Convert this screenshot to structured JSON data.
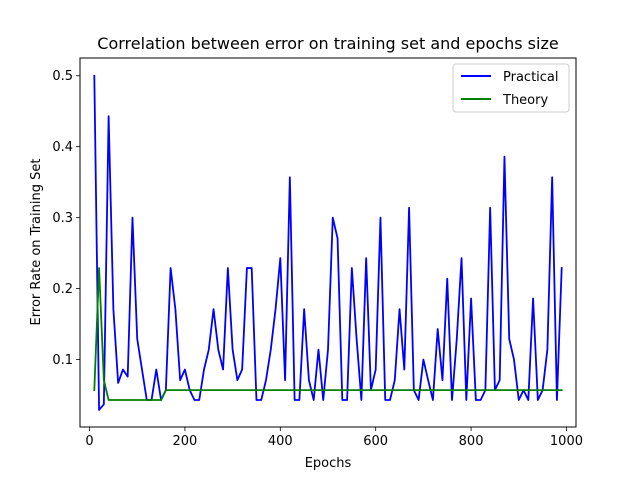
{
  "chart_data": {
    "type": "line",
    "title": "Correlation between error on training set and epochs size",
    "xlabel": "Epochs",
    "ylabel": "Error Rate on Training Set",
    "xlim": [
      -20,
      1020
    ],
    "ylim": [
      0.005,
      0.525
    ],
    "xticks": [
      0,
      200,
      400,
      600,
      800,
      1000
    ],
    "yticks": [
      0.1,
      0.2,
      0.3,
      0.4,
      0.5
    ],
    "xtick_labels": [
      "0",
      "200",
      "400",
      "600",
      "800",
      "1000"
    ],
    "ytick_labels": [
      "0.1",
      "0.2",
      "0.3",
      "0.4",
      "0.5"
    ],
    "grid": false,
    "legend_position": "top-right",
    "series": [
      {
        "name": "Practical",
        "color": "#0000ff",
        "x": [
          10,
          20,
          30,
          40,
          50,
          60,
          70,
          80,
          90,
          100,
          110,
          120,
          130,
          140,
          150,
          160,
          170,
          180,
          190,
          200,
          210,
          220,
          230,
          240,
          250,
          260,
          270,
          280,
          290,
          300,
          310,
          320,
          330,
          340,
          350,
          360,
          370,
          380,
          390,
          400,
          410,
          420,
          430,
          440,
          450,
          460,
          470,
          480,
          490,
          500,
          510,
          520,
          530,
          540,
          550,
          560,
          570,
          580,
          590,
          600,
          610,
          620,
          630,
          640,
          650,
          660,
          670,
          680,
          690,
          700,
          710,
          720,
          730,
          740,
          750,
          760,
          770,
          780,
          790,
          800,
          810,
          820,
          830,
          840,
          850,
          860,
          870,
          880,
          890,
          900,
          910,
          920,
          930,
          940,
          950,
          960,
          970,
          980,
          990
        ],
        "y": [
          0.5,
          0.029,
          0.037,
          0.443,
          0.171,
          0.067,
          0.086,
          0.076,
          0.3,
          0.129,
          0.086,
          0.043,
          0.043,
          0.086,
          0.043,
          0.057,
          0.229,
          0.171,
          0.071,
          0.086,
          0.057,
          0.043,
          0.043,
          0.086,
          0.114,
          0.171,
          0.114,
          0.086,
          0.229,
          0.114,
          0.071,
          0.086,
          0.229,
          0.229,
          0.043,
          0.043,
          0.071,
          0.114,
          0.171,
          0.243,
          0.071,
          0.357,
          0.043,
          0.043,
          0.171,
          0.071,
          0.043,
          0.114,
          0.043,
          0.114,
          0.3,
          0.271,
          0.043,
          0.043,
          0.229,
          0.129,
          0.043,
          0.243,
          0.057,
          0.086,
          0.3,
          0.043,
          0.043,
          0.071,
          0.171,
          0.086,
          0.314,
          0.057,
          0.043,
          0.1,
          0.071,
          0.043,
          0.143,
          0.071,
          0.214,
          0.043,
          0.129,
          0.243,
          0.043,
          0.186,
          0.043,
          0.043,
          0.057,
          0.314,
          0.057,
          0.071,
          0.386,
          0.129,
          0.1,
          0.043,
          0.057,
          0.043,
          0.186,
          0.043,
          0.057,
          0.114,
          0.357,
          0.043,
          0.229
        ]
      },
      {
        "name": "Theory",
        "color": "#008000",
        "x": [
          10,
          20,
          30,
          40,
          50,
          60,
          70,
          80,
          90,
          100,
          110,
          120,
          130,
          140,
          150,
          160,
          170,
          180,
          190,
          200,
          210,
          220,
          230,
          240,
          250,
          260,
          270,
          280,
          290,
          300,
          310,
          320,
          330,
          340,
          350,
          360,
          370,
          380,
          390,
          400,
          410,
          420,
          430,
          440,
          450,
          460,
          470,
          480,
          490,
          500,
          510,
          520,
          530,
          540,
          550,
          560,
          570,
          580,
          590,
          600,
          610,
          620,
          630,
          640,
          650,
          660,
          670,
          680,
          690,
          700,
          710,
          720,
          730,
          740,
          750,
          760,
          770,
          780,
          790,
          800,
          810,
          820,
          830,
          840,
          850,
          860,
          870,
          880,
          890,
          900,
          910,
          920,
          930,
          940,
          950,
          960,
          970,
          980,
          990
        ],
        "y": [
          0.057,
          0.229,
          0.071,
          0.043,
          0.043,
          0.043,
          0.043,
          0.043,
          0.043,
          0.043,
          0.043,
          0.043,
          0.043,
          0.043,
          0.043,
          0.057,
          0.057,
          0.057,
          0.057,
          0.057,
          0.057,
          0.057,
          0.057,
          0.057,
          0.057,
          0.057,
          0.057,
          0.057,
          0.057,
          0.057,
          0.057,
          0.057,
          0.057,
          0.057,
          0.057,
          0.057,
          0.057,
          0.057,
          0.057,
          0.057,
          0.057,
          0.057,
          0.057,
          0.057,
          0.057,
          0.057,
          0.057,
          0.057,
          0.057,
          0.057,
          0.057,
          0.057,
          0.057,
          0.057,
          0.057,
          0.057,
          0.057,
          0.057,
          0.057,
          0.057,
          0.057,
          0.057,
          0.057,
          0.057,
          0.057,
          0.057,
          0.057,
          0.057,
          0.057,
          0.057,
          0.057,
          0.057,
          0.057,
          0.057,
          0.057,
          0.057,
          0.057,
          0.057,
          0.057,
          0.057,
          0.057,
          0.057,
          0.057,
          0.057,
          0.057,
          0.057,
          0.057,
          0.057,
          0.057,
          0.057,
          0.057,
          0.057,
          0.057,
          0.057,
          0.057,
          0.057,
          0.057,
          0.057,
          0.057
        ]
      }
    ]
  }
}
